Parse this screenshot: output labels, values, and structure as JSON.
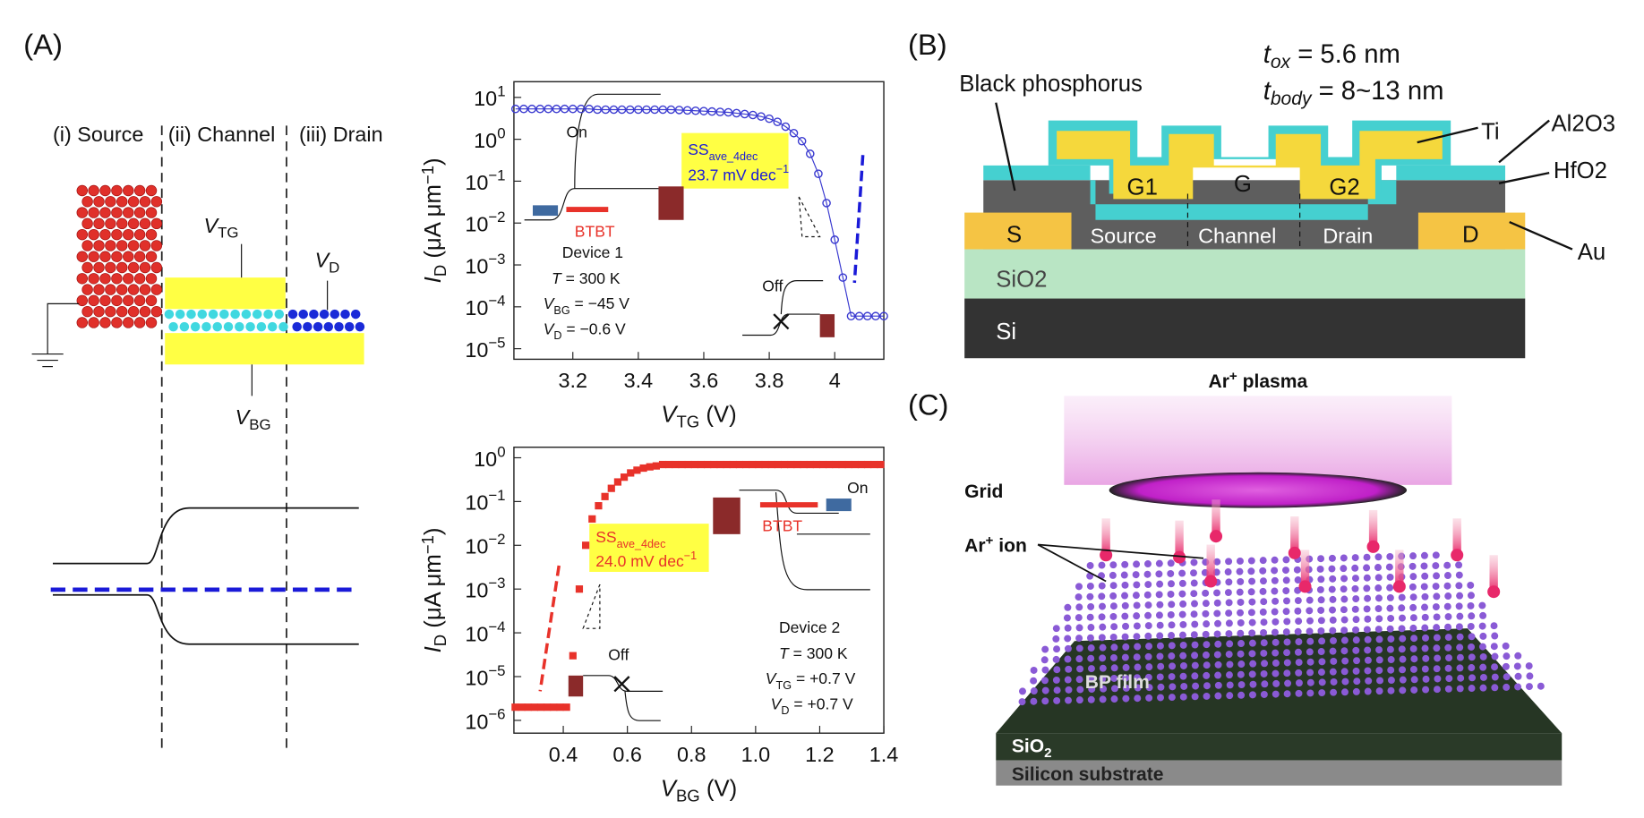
{
  "panel_labels": [
    "(A)",
    "(B)",
    "(C)"
  ],
  "schematic_a": {
    "regions": [
      "(i) Source",
      "(ii) Channel",
      "(iii) Drain"
    ],
    "terminals": [
      [
        "V",
        "TG"
      ],
      [
        "V",
        "D"
      ],
      [
        "V",
        "BG"
      ]
    ]
  },
  "chart_data": [
    {
      "type": "scatter",
      "xlabel": [
        "V",
        "TG",
        " (V)"
      ],
      "ylabel": [
        "I",
        "D",
        " (μA μm",
        "−1",
        ")"
      ],
      "xlim": [
        3.02,
        4.15
      ],
      "ylim": [
        5.6e-06,
        23.7
      ],
      "log_y": true,
      "xticks": [
        3.2,
        3.4,
        3.6,
        3.8,
        4.0
      ],
      "yticks": [
        {
          "value": 10,
          "label": "10",
          "exponent": "1"
        },
        {
          "value": 1,
          "label": "10",
          "exponent": "0"
        },
        {
          "value": 0.1,
          "label": "10",
          "exponent": "−1"
        },
        {
          "value": 0.01,
          "label": "10",
          "exponent": "−2"
        },
        {
          "value": 0.001,
          "label": "10",
          "exponent": "−3"
        },
        {
          "value": 0.0001,
          "label": "10",
          "exponent": "−4"
        },
        {
          "value": 1e-05,
          "label": "10",
          "exponent": "−5"
        }
      ],
      "x": [
        3.025,
        3.05,
        3.075,
        3.1,
        3.125,
        3.15,
        3.175,
        3.2,
        3.225,
        3.25,
        3.275,
        3.3,
        3.325,
        3.35,
        3.375,
        3.4,
        3.425,
        3.45,
        3.475,
        3.5,
        3.525,
        3.55,
        3.575,
        3.6,
        3.625,
        3.65,
        3.675,
        3.7,
        3.725,
        3.75,
        3.775,
        3.8,
        3.825,
        3.85,
        3.875,
        3.9,
        3.925,
        3.95,
        3.975,
        4.0,
        4.025,
        4.05,
        4.075,
        4.1,
        4.125,
        4.15
      ],
      "series": [
        {
          "color": "#3a3ad0",
          "marker": "circle",
          "line": true,
          "values": [
            5.3,
            5.3,
            5.3,
            5.3,
            5.3,
            5.3,
            5.3,
            5.3,
            5.3,
            5.3,
            5.1,
            5.1,
            5.1,
            5.1,
            5.1,
            5.1,
            5.1,
            5.1,
            5.1,
            5.1,
            5.0,
            4.9,
            4.8,
            4.7,
            4.6,
            4.5,
            4.4,
            4.2,
            4.0,
            3.8,
            3.5,
            3.1,
            2.6,
            2.0,
            1.4,
            0.9,
            0.45,
            0.15,
            0.03,
            0.004,
            0.0005,
            6e-05,
            6e-05,
            6e-05,
            6e-05,
            6e-05
          ]
        }
      ],
      "annotations": [
        "On",
        "BTBT",
        [
          "SS",
          "ave_4dec"
        ],
        [
          "23.7 mV dec",
          "−1"
        ],
        "Device 1",
        [
          "T",
          " = 300 K"
        ],
        [
          "V",
          "BG",
          " = −45 V"
        ],
        [
          "V",
          "D",
          " = −0.6 V"
        ],
        "Off"
      ]
    },
    {
      "type": "scatter",
      "xlabel": [
        "V",
        "BG",
        " (V)"
      ],
      "ylabel": [
        "I",
        "D",
        " (μA μm",
        "−1",
        ")"
      ],
      "xlim": [
        0.246,
        1.4
      ],
      "ylim": [
        5.1e-07,
        1.74
      ],
      "log_y": true,
      "xticks": [
        0.4,
        0.6,
        0.8,
        {
          "value": 1,
          "label": "1.0"
        },
        1.2,
        1.4
      ],
      "yticks": [
        {
          "value": 1,
          "label": "10",
          "exponent": "0"
        },
        {
          "value": 0.1,
          "label": "10",
          "exponent": "−1"
        },
        {
          "value": 0.01,
          "label": "10",
          "exponent": "−2"
        },
        {
          "value": 0.001,
          "label": "10",
          "exponent": "−3"
        },
        {
          "value": 0.0001,
          "label": "10",
          "exponent": "−4"
        },
        {
          "value": 1e-05,
          "label": "10",
          "exponent": "−5"
        },
        {
          "value": 1e-06,
          "label": "10",
          "exponent": "−6"
        }
      ],
      "x": [
        0.25,
        0.27,
        0.29,
        0.31,
        0.33,
        0.35,
        0.37,
        0.39,
        0.41,
        0.43,
        0.45,
        0.47,
        0.49,
        0.51,
        0.53,
        0.55,
        0.57,
        0.59,
        0.61,
        0.63,
        0.65,
        0.67,
        0.69,
        0.71,
        0.73,
        0.75,
        0.77,
        0.79,
        0.81,
        0.83,
        0.85,
        0.87,
        0.89,
        0.91,
        0.93,
        0.95,
        0.97,
        0.99,
        1.01,
        1.03,
        1.05,
        1.07,
        1.09,
        1.11,
        1.13,
        1.15,
        1.17,
        1.19,
        1.21,
        1.23,
        1.25,
        1.27,
        1.29,
        1.31,
        1.33,
        1.35,
        1.37,
        1.39
      ],
      "series": [
        {
          "color": "#e8322a",
          "marker": "square",
          "line": false,
          "values": [
            2e-06,
            2e-06,
            2e-06,
            2e-06,
            2e-06,
            2e-06,
            2e-06,
            2e-06,
            2e-06,
            3e-05,
            0.001,
            0.01,
            0.04,
            0.08,
            0.13,
            0.2,
            0.28,
            0.36,
            0.45,
            0.52,
            0.58,
            0.62,
            0.65,
            0.7,
            0.7,
            0.7,
            0.7,
            0.7,
            0.7,
            0.7,
            0.7,
            0.7,
            0.7,
            0.7,
            0.7,
            0.7,
            0.7,
            0.7,
            0.7,
            0.7,
            0.7,
            0.7,
            0.7,
            0.7,
            0.7,
            0.7,
            0.7,
            0.7,
            0.7,
            0.7,
            0.7,
            0.7,
            0.7,
            0.7,
            0.7,
            0.7,
            0.7,
            0.7
          ]
        }
      ],
      "annotations": [
        "On",
        "BTBT",
        [
          "SS",
          "ave_4dec"
        ],
        [
          "24.0 mV dec",
          "−1"
        ],
        "Device 2",
        [
          "T",
          " = 300 K"
        ],
        [
          "V",
          "TG",
          " = +0.7 V"
        ],
        [
          "V",
          "D",
          " = +0.7 V"
        ],
        "Off"
      ]
    }
  ],
  "device_b": {
    "tox": [
      "t",
      "ox",
      " = 5.6 nm"
    ],
    "tbody": [
      "t",
      "body",
      " = 8~13 nm"
    ],
    "labels": [
      "Black phosphorus",
      "Ti",
      "Al2O3",
      "HfO2",
      "Au",
      "S",
      "D",
      "G1",
      "G",
      "G2",
      "Source",
      "Channel",
      "Drain",
      "SiO2",
      "Si"
    ]
  },
  "process_c": {
    "plasma": [
      "Ar",
      "+",
      " plasma"
    ],
    "grid": "Grid",
    "ion": [
      "Ar",
      "+",
      " ion"
    ],
    "film": "BP film",
    "oxide": [
      "SiO",
      "2"
    ],
    "substrate": "Silicon substrate"
  }
}
